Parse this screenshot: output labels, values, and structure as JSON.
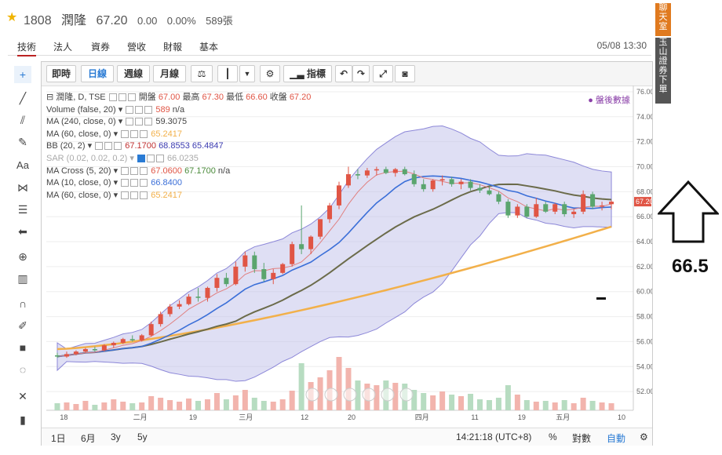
{
  "header": {
    "code": "1808",
    "name": "潤隆",
    "price": "67.20",
    "change": "0.00",
    "pct": "0.00%",
    "volume": "589張"
  },
  "tabs": [
    "技術",
    "法人",
    "資券",
    "營收",
    "財報",
    "基本"
  ],
  "datetime": "05/08 13:30",
  "toolbar": {
    "labels": [
      "即時",
      "日線",
      "週線",
      "月線",
      "指標"
    ]
  },
  "legend": {
    "l1_title": "潤隆, D, TSE",
    "l1_open_lbl": "開盤",
    "l1_open": "67.00",
    "l1_high_lbl": "最高",
    "l1_high": "67.30",
    "l1_low_lbl": "最低",
    "l1_low": "66.60",
    "l1_close_lbl": "收盤",
    "l1_close": "67.20",
    "l2_name": "Volume (false, 20)",
    "l2_val": "589",
    "l2_val2": "n/a",
    "l3_name": "MA (240, close, 0)",
    "l3_val": "59.3075",
    "l4_name": "MA (60, close, 0)",
    "l4_val": "65.2417",
    "l5_name": "BB (20, 2)",
    "l5_v1": "67.1700",
    "l5_v2": "68.8553",
    "l5_v3": "65.4847",
    "l6_name": "SAR (0.02, 0.02, 0.2)",
    "l6_val": "66.0235",
    "l7_name": "MA Cross (5, 20)",
    "l7_v1": "67.0600",
    "l7_v2": "67.1700",
    "l7_v3": "n/a",
    "l8_name": "MA (10, close, 0)",
    "l8_val": "66.8400",
    "l9_name": "MA (60, close, 0)",
    "l9_val": "65.2417"
  },
  "afterhours": "盤後數據",
  "bottom": {
    "ranges": [
      "1日",
      "6月",
      "3y",
      "5y"
    ],
    "time": "14:21:18 (UTC+8)",
    "pct": "%",
    "log": "對數",
    "auto": "自動"
  },
  "right_panel": {
    "chat": "聊天室",
    "broker": "玉山證券下單"
  },
  "note": "66.5",
  "colors": {
    "up": "#e05545",
    "down": "#5aa56e",
    "bb_fill": "#b9b7e6",
    "ma_fast": "#e07f7f",
    "ma_blue": "#3b6fd8",
    "ma_olive": "#6b6b4a",
    "ma_orange": "#f2b04a"
  },
  "chart_data": {
    "type": "candlestick",
    "y_ticks": [
      "76.00",
      "74.00",
      "72.00",
      "70.00",
      "68.00",
      "66.00",
      "64.00",
      "62.00",
      "60.00",
      "58.00",
      "56.00",
      "54.00",
      "52.00"
    ],
    "x_ticks": [
      "18",
      "二月",
      "19",
      "三月",
      "12",
      "20",
      "四月",
      "11",
      "19",
      "五月",
      "10"
    ],
    "last_price_label": "67.20",
    "ylim": [
      50.5,
      76.5
    ],
    "candles": [
      [
        54.9,
        55.1,
        54.7,
        54.8
      ],
      [
        54.8,
        55.2,
        54.7,
        55.0
      ],
      [
        55.0,
        55.3,
        54.9,
        55.2
      ],
      [
        55.2,
        55.5,
        55.1,
        55.4
      ],
      [
        55.4,
        55.6,
        55.2,
        55.3
      ],
      [
        55.3,
        55.8,
        55.2,
        55.7
      ],
      [
        55.7,
        56.0,
        55.5,
        55.9
      ],
      [
        55.9,
        56.3,
        55.8,
        56.2
      ],
      [
        56.2,
        56.5,
        56.0,
        56.1
      ],
      [
        56.1,
        56.6,
        56.0,
        56.5
      ],
      [
        56.5,
        57.6,
        56.4,
        57.4
      ],
      [
        57.4,
        58.4,
        57.2,
        58.2
      ],
      [
        58.2,
        59.0,
        58.0,
        58.8
      ],
      [
        58.8,
        59.3,
        58.6,
        59.0
      ],
      [
        59.0,
        59.8,
        58.9,
        59.6
      ],
      [
        59.6,
        60.3,
        59.2,
        59.5
      ],
      [
        59.5,
        60.4,
        59.2,
        60.3
      ],
      [
        60.3,
        61.4,
        60.0,
        61.1
      ],
      [
        61.1,
        61.5,
        60.4,
        60.6
      ],
      [
        60.6,
        62.4,
        60.5,
        62.0
      ],
      [
        62.0,
        63.2,
        61.6,
        62.9
      ],
      [
        62.9,
        63.2,
        61.5,
        61.8
      ],
      [
        61.8,
        62.3,
        60.8,
        61.0
      ],
      [
        61.0,
        61.8,
        60.6,
        61.5
      ],
      [
        61.5,
        62.3,
        61.4,
        62.2
      ],
      [
        62.2,
        64.0,
        62.0,
        63.8
      ],
      [
        63.8,
        66.9,
        63.0,
        63.4
      ],
      [
        63.4,
        64.5,
        63.0,
        64.4
      ],
      [
        64.4,
        65.8,
        64.2,
        65.8
      ],
      [
        65.8,
        67.1,
        65.5,
        66.9
      ],
      [
        66.9,
        68.8,
        66.6,
        68.5
      ],
      [
        68.5,
        70.0,
        68.3,
        69.4
      ],
      [
        69.4,
        69.8,
        69.0,
        69.3
      ],
      [
        69.3,
        69.9,
        69.1,
        69.7
      ],
      [
        69.7,
        70.0,
        69.3,
        69.8
      ],
      [
        69.8,
        70.0,
        69.4,
        69.5
      ],
      [
        69.5,
        69.9,
        69.2,
        69.8
      ],
      [
        69.8,
        70.0,
        69.3,
        69.4
      ],
      [
        69.4,
        69.7,
        68.4,
        68.6
      ],
      [
        68.6,
        69.0,
        68.0,
        68.2
      ],
      [
        68.2,
        69.0,
        68.0,
        68.9
      ],
      [
        68.9,
        69.3,
        68.5,
        69.0
      ],
      [
        69.0,
        69.2,
        68.4,
        68.6
      ],
      [
        68.6,
        69.0,
        68.2,
        68.8
      ],
      [
        68.8,
        69.0,
        68.1,
        68.3
      ],
      [
        68.3,
        68.6,
        67.9,
        68.1
      ],
      [
        68.1,
        68.4,
        67.7,
        67.8
      ],
      [
        67.8,
        68.0,
        67.0,
        67.2
      ],
      [
        67.2,
        67.4,
        65.9,
        66.1
      ],
      [
        66.1,
        67.0,
        65.9,
        66.8
      ],
      [
        66.8,
        67.0,
        65.9,
        66.0
      ],
      [
        66.0,
        67.5,
        65.9,
        67.0
      ],
      [
        67.0,
        67.2,
        66.3,
        66.4
      ],
      [
        66.4,
        67.1,
        66.2,
        67.0
      ],
      [
        67.0,
        67.2,
        66.0,
        66.2
      ],
      [
        66.2,
        66.6,
        65.9,
        66.4
      ],
      [
        66.4,
        68.1,
        66.2,
        67.8
      ],
      [
        67.8,
        68.0,
        66.6,
        66.8
      ],
      [
        66.8,
        67.2,
        66.5,
        66.9
      ],
      [
        67.0,
        67.3,
        66.6,
        67.2
      ]
    ],
    "volumes": [
      0.9,
      1.0,
      0.8,
      1.2,
      0.7,
      1.0,
      1.4,
      1.1,
      0.9,
      1.0,
      1.8,
      1.6,
      1.3,
      1.1,
      1.5,
      1.2,
      1.4,
      2.2,
      1.4,
      1.9,
      2.6,
      1.6,
      1.2,
      1.1,
      1.4,
      2.5,
      6.0,
      3.6,
      4.2,
      5.1,
      6.8,
      5.4,
      3.8,
      3.4,
      3.2,
      3.8,
      3.5,
      3.4,
      2.6,
      2.2,
      1.9,
      2.4,
      2.0,
      1.8,
      2.1,
      1.4,
      1.3,
      1.6,
      3.2,
      2.0,
      1.3,
      1.1,
      1.2,
      1.0,
      1.3,
      0.9,
      1.6,
      1.2,
      1.0,
      0.9
    ]
  }
}
